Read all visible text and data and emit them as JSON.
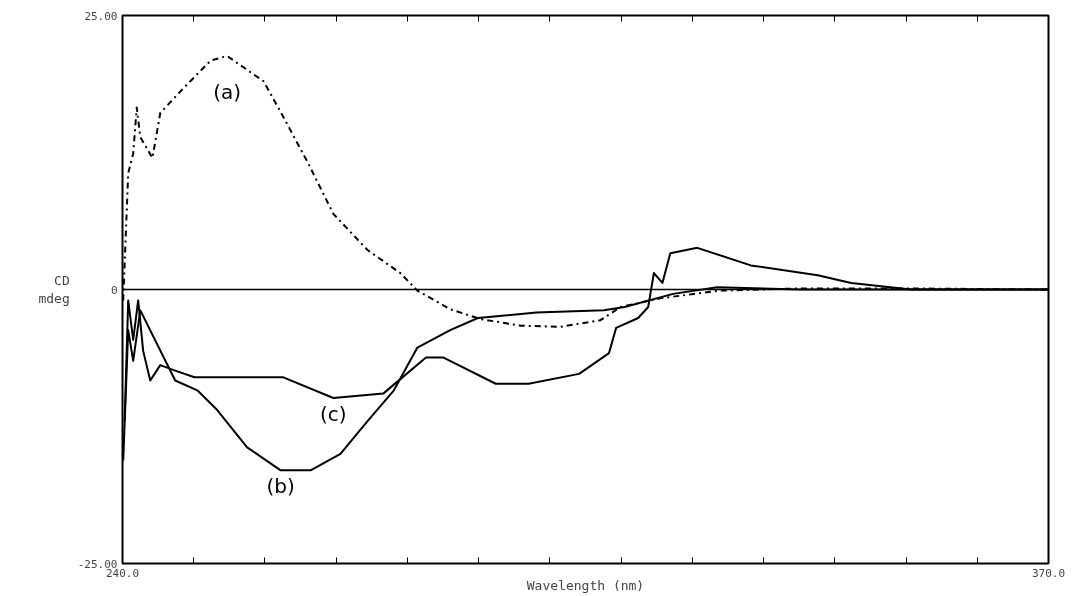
{
  "chart_data": {
    "type": "line",
    "xlabel": "Wavelength (nm)",
    "ylabel": "CD\nmdeg",
    "xlim": [
      240,
      370
    ],
    "ylim": [
      -25,
      25
    ],
    "xticks": [
      {
        "value": 240,
        "label": "240.0"
      },
      {
        "value": 250,
        "label": null
      },
      {
        "value": 260,
        "label": null
      },
      {
        "value": 270,
        "label": null
      },
      {
        "value": 280,
        "label": null
      },
      {
        "value": 290,
        "label": null
      },
      {
        "value": 300,
        "label": null
      },
      {
        "value": 310,
        "label": null
      },
      {
        "value": 320,
        "label": null
      },
      {
        "value": 330,
        "label": null
      },
      {
        "value": 340,
        "label": null
      },
      {
        "value": 350,
        "label": null
      },
      {
        "value": 360,
        "label": null
      },
      {
        "value": 370,
        "label": "370.0"
      }
    ],
    "yticks": [
      {
        "value": -25,
        "label": "-25.00"
      },
      0,
      {
        "value": 25,
        "label": "25.00"
      }
    ],
    "grid": false,
    "marker": "none",
    "series": [
      {
        "name": "(a)",
        "color": "#000000",
        "line_style": "dashed",
        "x": [
          240.1,
          240.8,
          241.5,
          242.0,
          242.5,
          244.2,
          245.3,
          248.6,
          252.4,
          254.7,
          259.8,
          262.2,
          266.0,
          269.6,
          274.4,
          279.0,
          281.4,
          286.0,
          290.3,
          295.9,
          301.5,
          307.1,
          309.9,
          315.5,
          324.0,
          335.2,
          349.2,
          370.0
        ],
        "values": [
          -1.0,
          10.6,
          12.4,
          16.6,
          13.9,
          12.0,
          16.1,
          18.4,
          20.9,
          21.3,
          19.0,
          16.2,
          11.6,
          6.9,
          3.6,
          1.5,
          -0.1,
          -1.8,
          -2.7,
          -3.3,
          -3.4,
          -2.8,
          -1.6,
          -0.8,
          -0.1,
          0.1,
          0.1,
          0.0
        ]
      },
      {
        "name": "(b)",
        "color": "#000000",
        "line_style": "solid",
        "x": [
          240.1,
          240.8,
          241.5,
          242.5,
          247.4,
          250.5,
          253.3,
          257.5,
          262.2,
          266.4,
          270.6,
          274.4,
          278.1,
          281.4,
          286.0,
          289.9,
          298.1,
          307.6,
          310.5,
          317.3,
          323.5,
          335.2,
          370.0
        ],
        "values": [
          -15.6,
          -3.7,
          -6.5,
          -1.9,
          -8.3,
          -9.2,
          -11.0,
          -14.4,
          -16.5,
          -16.5,
          -15.0,
          -12.0,
          -9.2,
          -5.3,
          -3.7,
          -2.6,
          -2.1,
          -1.9,
          -1.6,
          -0.4,
          0.2,
          0.0,
          0.0
        ]
      },
      {
        "name": "(c)",
        "color": "#000000",
        "line_style": "solid",
        "x": [
          240.3,
          240.8,
          241.5,
          242.2,
          242.9,
          243.9,
          245.3,
          247.4,
          250.1,
          256.4,
          262.5,
          269.6,
          276.6,
          282.6,
          285.0,
          292.4,
          297.0,
          304.1,
          308.3,
          309.3,
          312.4,
          313.8,
          314.6,
          315.8,
          316.9,
          320.7,
          328.2,
          337.6,
          342.3,
          350.7,
          370.0
        ],
        "values": [
          -12.0,
          -1.0,
          -4.6,
          -1.0,
          -5.6,
          -8.3,
          -6.9,
          -7.4,
          -8.0,
          -8.0,
          -8.0,
          -9.9,
          -9.5,
          -6.2,
          -6.2,
          -8.6,
          -8.6,
          -7.7,
          -5.8,
          -3.5,
          -2.6,
          -1.6,
          1.5,
          0.6,
          3.3,
          3.8,
          2.2,
          1.3,
          0.6,
          0.0,
          0.0
        ]
      }
    ],
    "ref_lines": [
      {
        "axis": "y",
        "value": 0,
        "color": "#000000",
        "line_style": "solid"
      }
    ]
  }
}
